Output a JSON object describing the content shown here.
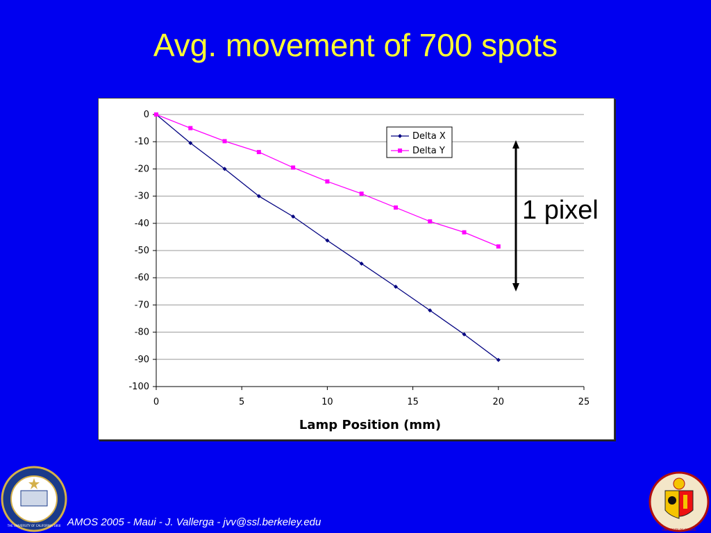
{
  "slide": {
    "title": "Avg. movement of 700 spots",
    "annotation": "1 pixel",
    "footer": "AMOS 2005 - Maui - J. Vallerga - jvv@ssl.berkeley.edu",
    "logo_left": "THE UNIVERSITY OF CALIFORNIA 1868",
    "logo_right": "UNIVERSITE DE GENEVE"
  },
  "colors": {
    "background": "#0000f0",
    "title": "#ffff33",
    "delta_x": "#000080",
    "delta_y": "#ff00ff"
  },
  "chart_data": {
    "type": "line",
    "title": "",
    "xlabel": "Lamp Position (mm)",
    "ylabel": "",
    "xlim": [
      0,
      25
    ],
    "ylim": [
      -100,
      0
    ],
    "xticks": [
      0,
      5,
      10,
      15,
      20,
      25
    ],
    "yticks": [
      0,
      -10,
      -20,
      -30,
      -40,
      -50,
      -60,
      -70,
      -80,
      -90,
      -100
    ],
    "grid": "horizontal",
    "legend_position": "top-right",
    "x": [
      0,
      2,
      4,
      6,
      8,
      10,
      12,
      14,
      16,
      18,
      20
    ],
    "series": [
      {
        "name": "Delta X",
        "marker": "diamond",
        "color": "#000080",
        "values": [
          0,
          -10.5,
          -20,
          -30,
          -37.5,
          -46.3,
          -54.8,
          -63.3,
          -72,
          -80.8,
          -90.2
        ]
      },
      {
        "name": "Delta Y",
        "marker": "square",
        "color": "#ff00ff",
        "values": [
          0,
          -5,
          -9.8,
          -13.8,
          -19.5,
          -24.6,
          -29.1,
          -34.2,
          -39.3,
          -43.3,
          -48.5
        ]
      }
    ]
  }
}
